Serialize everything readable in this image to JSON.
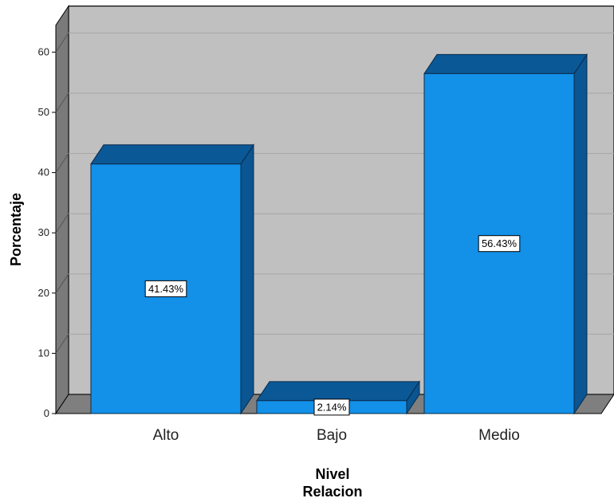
{
  "chart_data": {
    "type": "bar",
    "categories": [
      "Alto",
      "Bajo",
      "Medio"
    ],
    "values": [
      41.43,
      2.14,
      56.43
    ],
    "data_labels": [
      "41.43%",
      "2.14%",
      "56.43%"
    ],
    "ylabel": "Porcentaje",
    "xlabel_lines": [
      "Nivel",
      "Relacion"
    ],
    "ylim": [
      0,
      65
    ],
    "yticks": [
      0,
      10,
      20,
      30,
      40,
      50,
      60
    ],
    "grid": true,
    "style": "3d",
    "colors": {
      "bar_front": "#1390E8",
      "bar_top": "#0B5896",
      "bar_side": "#0A5592",
      "back_wall": "#C0C0C0",
      "side_wall": "#7A7A7A",
      "floor": "#7F7F7F",
      "gridline": "#A6A6A6"
    }
  }
}
